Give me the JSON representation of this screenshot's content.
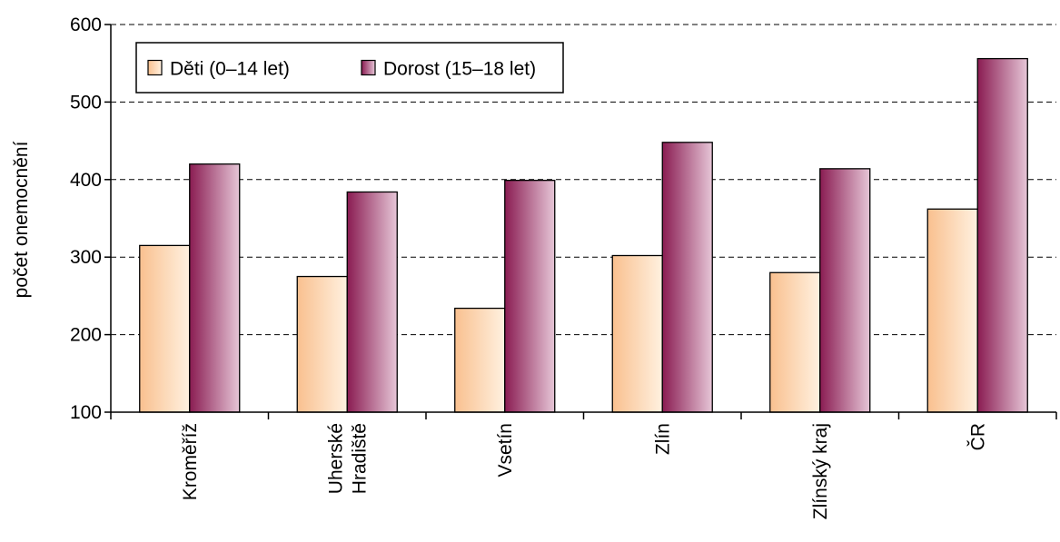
{
  "chart_data": {
    "type": "bar",
    "title": "",
    "xlabel": "",
    "ylabel": "počet onemocnění",
    "ylim": [
      100,
      600
    ],
    "yticks": [
      100,
      200,
      300,
      400,
      500,
      600
    ],
    "grid": true,
    "legend_position": "top-left",
    "categories": [
      [
        "Kroměříž"
      ],
      [
        "Uherské",
        "Hradiště"
      ],
      [
        "Vsetín"
      ],
      [
        "Zlín"
      ],
      [
        "Zlínský kraj"
      ],
      [
        "ČR"
      ]
    ],
    "series": [
      {
        "name": "Děti (0–14 let)",
        "values": [
          315,
          275,
          234,
          302,
          280,
          362
        ],
        "color_light": "#fff1e0",
        "color_dark": "#f9c08f"
      },
      {
        "name": "Dorost (15–18 let)",
        "values": [
          420,
          384,
          399,
          448,
          414,
          556
        ],
        "color_light": "#e6c6d7",
        "color_dark": "#8a1c52"
      }
    ]
  }
}
